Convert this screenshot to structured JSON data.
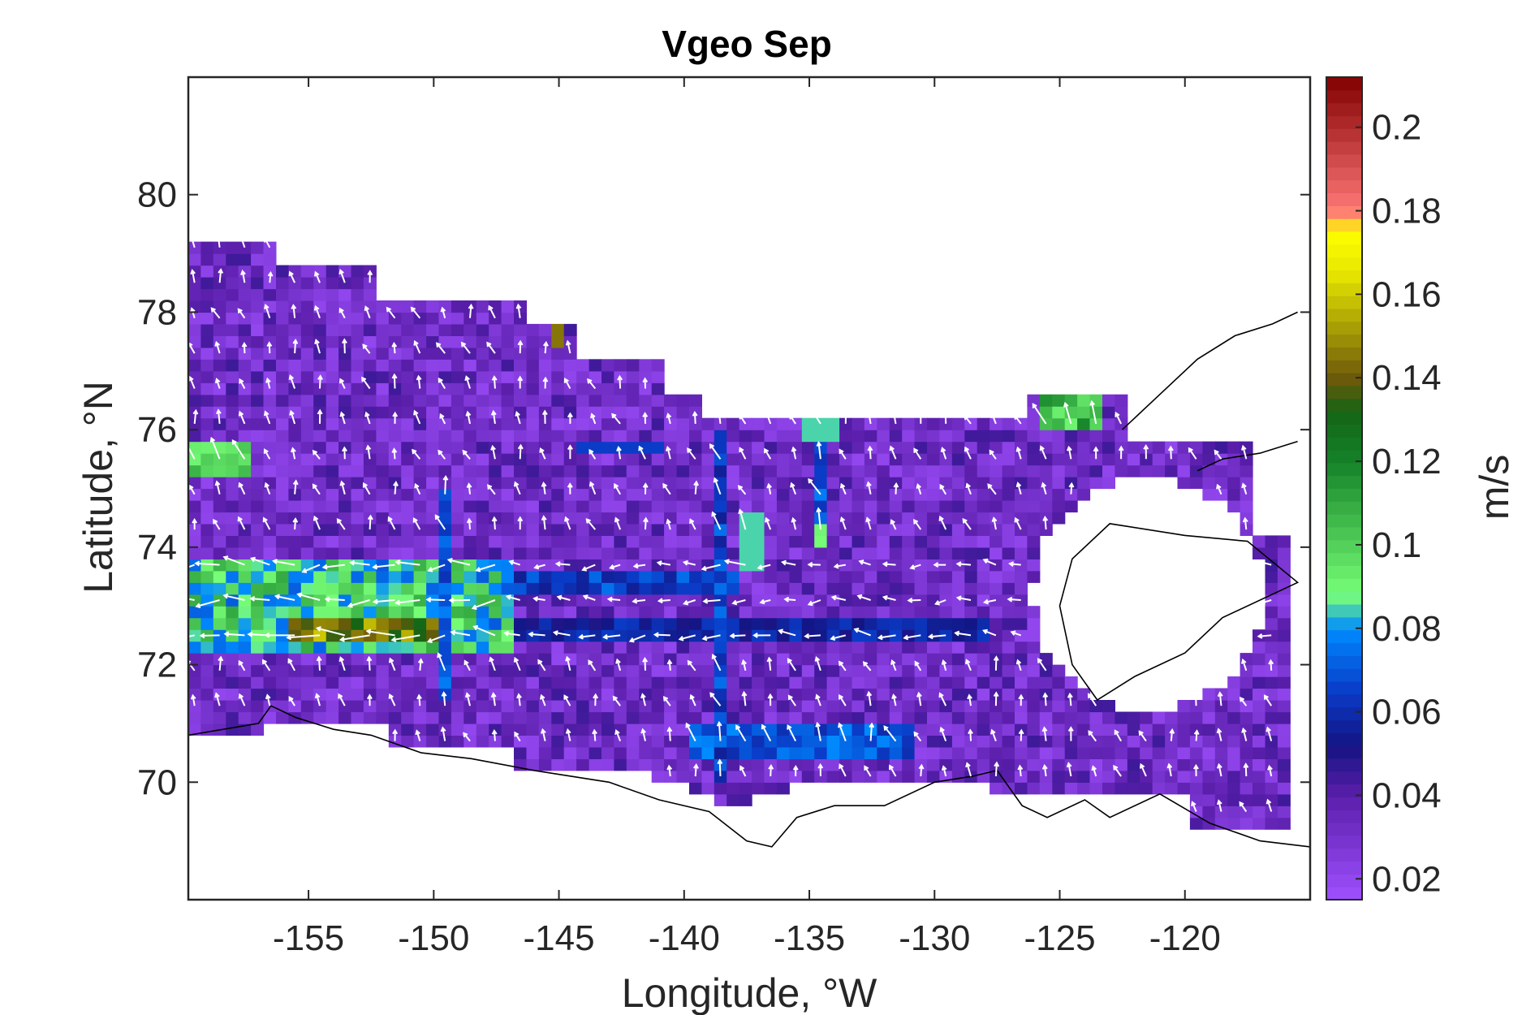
{
  "chart_data": {
    "type": "heatmap",
    "title": "Vgeo Sep",
    "xlabel": "Longitude, °W",
    "ylabel": "Latitude, °N",
    "colorbar_label": "m/s",
    "xlim": [
      -159.8,
      -115
    ],
    "ylim": [
      68,
      82
    ],
    "xticks": [
      -155,
      -150,
      -145,
      -140,
      -135,
      -130,
      -125,
      -120
    ],
    "xtick_labels": [
      "-155",
      "-150",
      "-145",
      "-140",
      "-135",
      "-130",
      "-125",
      "-120"
    ],
    "yticks": [
      70,
      72,
      74,
      76,
      78,
      80
    ],
    "ytick_labels": [
      "70",
      "72",
      "74",
      "76",
      "78",
      "80"
    ],
    "colorbar": {
      "range": [
        0.015,
        0.212
      ],
      "ticks": [
        0.02,
        0.04,
        0.06,
        0.08,
        0.1,
        0.12,
        0.14,
        0.16,
        0.18,
        0.2
      ],
      "tick_labels": [
        "0.02",
        "0.04",
        "0.06",
        "0.08",
        "0.1",
        "0.12",
        "0.14",
        "0.16",
        "0.18",
        "0.2"
      ]
    },
    "grid": false,
    "vectors": "white arrows showing geostrophic current direction",
    "approximate_regions_mps": [
      {
        "lon": [
          -159,
          -147
        ],
        "lat": [
          72.3,
          73.8
        ],
        "value": 0.1
      },
      {
        "lon": [
          -156,
          -150
        ],
        "lat": [
          72.4,
          72.8
        ],
        "value": 0.15
      },
      {
        "lon": [
          -159,
          -157.5
        ],
        "lat": [
          75.3,
          75.8
        ],
        "value": 0.1
      },
      {
        "lon": [
          -147,
          -138
        ],
        "lat": [
          73.3,
          73.8
        ],
        "value": 0.07
      },
      {
        "lon": [
          -140,
          -130
        ],
        "lat": [
          70.5,
          71.0
        ],
        "value": 0.07
      },
      {
        "lon": [
          -125.5,
          -124
        ],
        "lat": [
          76.3,
          76.6
        ],
        "value": 0.1
      },
      {
        "lon": [
          -145.5,
          -145
        ],
        "lat": [
          77.5,
          78.0
        ],
        "value": 0.14
      },
      {
        "lon": [
          -135,
          -134.5
        ],
        "lat": [
          75.5,
          76.3
        ],
        "value": 0.09
      },
      {
        "lon": [
          -159,
          -115
        ],
        "lat": [
          69.5,
          79
        ],
        "value": 0.03
      }
    ]
  }
}
